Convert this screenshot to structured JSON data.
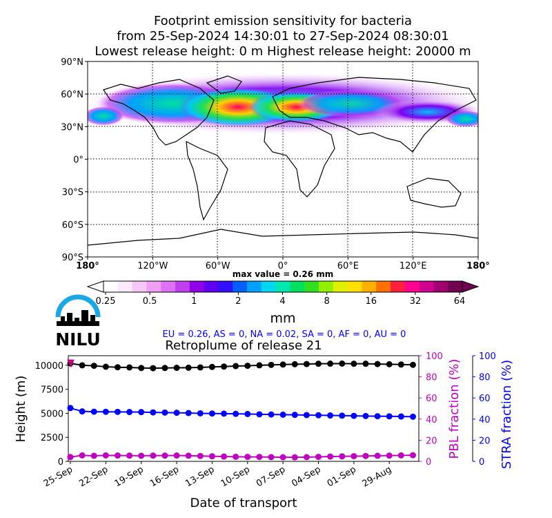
{
  "title": {
    "line1": "Footprint emission sensitivity for bacteria",
    "line2": "from 25-Sep-2024 14:30:01 to 27-Sep-2024 08:30:01",
    "line3": "Lowest release height: 0 m       Highest release height: 20000 m"
  },
  "logo": {
    "text": "NILU"
  },
  "chart_data": [
    {
      "type": "heatmap",
      "name": "footprint-map",
      "x_ticks": [
        "180°",
        "120°W",
        "60°W",
        "0°",
        "60°E",
        "120°E",
        "180°"
      ],
      "y_ticks": [
        "90°N",
        "60°N",
        "30°N",
        "0°",
        "30°S",
        "60°S",
        "90°S"
      ],
      "annotation": "max value = 0.26 mm",
      "colorbar": {
        "ticks": [
          "0.25",
          "0.5",
          "1",
          "2",
          "4",
          "8",
          "16",
          "32",
          "64"
        ],
        "unit": "mm",
        "colors": [
          "#ffffff",
          "#fbe8fb",
          "#f6c6f6",
          "#f0a0f4",
          "#e070f4",
          "#c040f0",
          "#9000e8",
          "#6000f0",
          "#3010ff",
          "#0060ff",
          "#00a0ff",
          "#00d8f0",
          "#00e8b0",
          "#00e060",
          "#30e020",
          "#90f000",
          "#e0f000",
          "#ffe000",
          "#ffb000",
          "#ff7000",
          "#ff2040",
          "#ff0090",
          "#d00090",
          "#a00070",
          "#700050"
        ]
      },
      "regions_text": "EU = 0.26,  AS = 0,  NA = 0.02,  SA = 0,  AF = 0,  AU = 0",
      "grid": true
    },
    {
      "type": "line",
      "name": "retroplume",
      "title": "Retroplume of release 21",
      "xlabel": "Date of transport",
      "ylabel": "Height (m)",
      "y2label": "PBL fraction (%)",
      "y3label": "STRA fraction (%)",
      "x_ticks": [
        "25-Sep",
        "22-Sep",
        "19-Sep",
        "16-Sep",
        "13-Sep",
        "10-Sep",
        "07-Sep",
        "04-Sep",
        "01-Sep",
        "29-Aug"
      ],
      "y_ticks": [
        "0",
        "2500",
        "5000",
        "7500",
        "10000"
      ],
      "y2_ticks": [
        "0",
        "20",
        "40",
        "60",
        "80",
        "100"
      ],
      "y3_ticks": [
        "0",
        "20",
        "40",
        "60",
        "80",
        "100"
      ],
      "ylim": [
        0,
        11000
      ],
      "y2lim": [
        0,
        100
      ],
      "y3lim": [
        0,
        100
      ],
      "x_days_back": [
        0,
        1,
        2,
        3,
        4,
        5,
        6,
        7,
        8,
        9,
        10,
        11,
        12,
        13,
        14,
        15,
        16,
        17,
        18,
        19,
        20,
        21,
        22,
        23,
        24,
        25,
        26,
        27,
        28,
        29
      ],
      "series": [
        {
          "axis": "y",
          "color": "#000000",
          "values": [
            10200,
            10000,
            9950,
            9850,
            9800,
            9780,
            9720,
            9700,
            9720,
            9740,
            9750,
            9780,
            9830,
            9870,
            9920,
            9950,
            10000,
            10040,
            10080,
            10110,
            10130,
            10160,
            10170,
            10180,
            10160,
            10160,
            10130,
            10110,
            10080,
            10050
          ]
        },
        {
          "axis": "y",
          "color": "#0000ff",
          "values": [
            5550,
            5200,
            5170,
            5160,
            5150,
            5140,
            5130,
            5100,
            5080,
            5060,
            5030,
            5000,
            4980,
            4970,
            4950,
            4930,
            4900,
            4880,
            4860,
            4840,
            4820,
            4800,
            4780,
            4760,
            4740,
            4720,
            4700,
            4690,
            4670,
            4650
          ]
        },
        {
          "axis": "y",
          "color": "#c000c0",
          "values": [
            450,
            620,
            580,
            620,
            610,
            600,
            580,
            600,
            600,
            610,
            590,
            560,
            530,
            500,
            480,
            470,
            460,
            440,
            430,
            420,
            440,
            470,
            500,
            520,
            540,
            560,
            580,
            600,
            620,
            640
          ]
        }
      ],
      "release_marker": {
        "x": 0,
        "y": 10200,
        "color": "#c0007a"
      }
    }
  ]
}
